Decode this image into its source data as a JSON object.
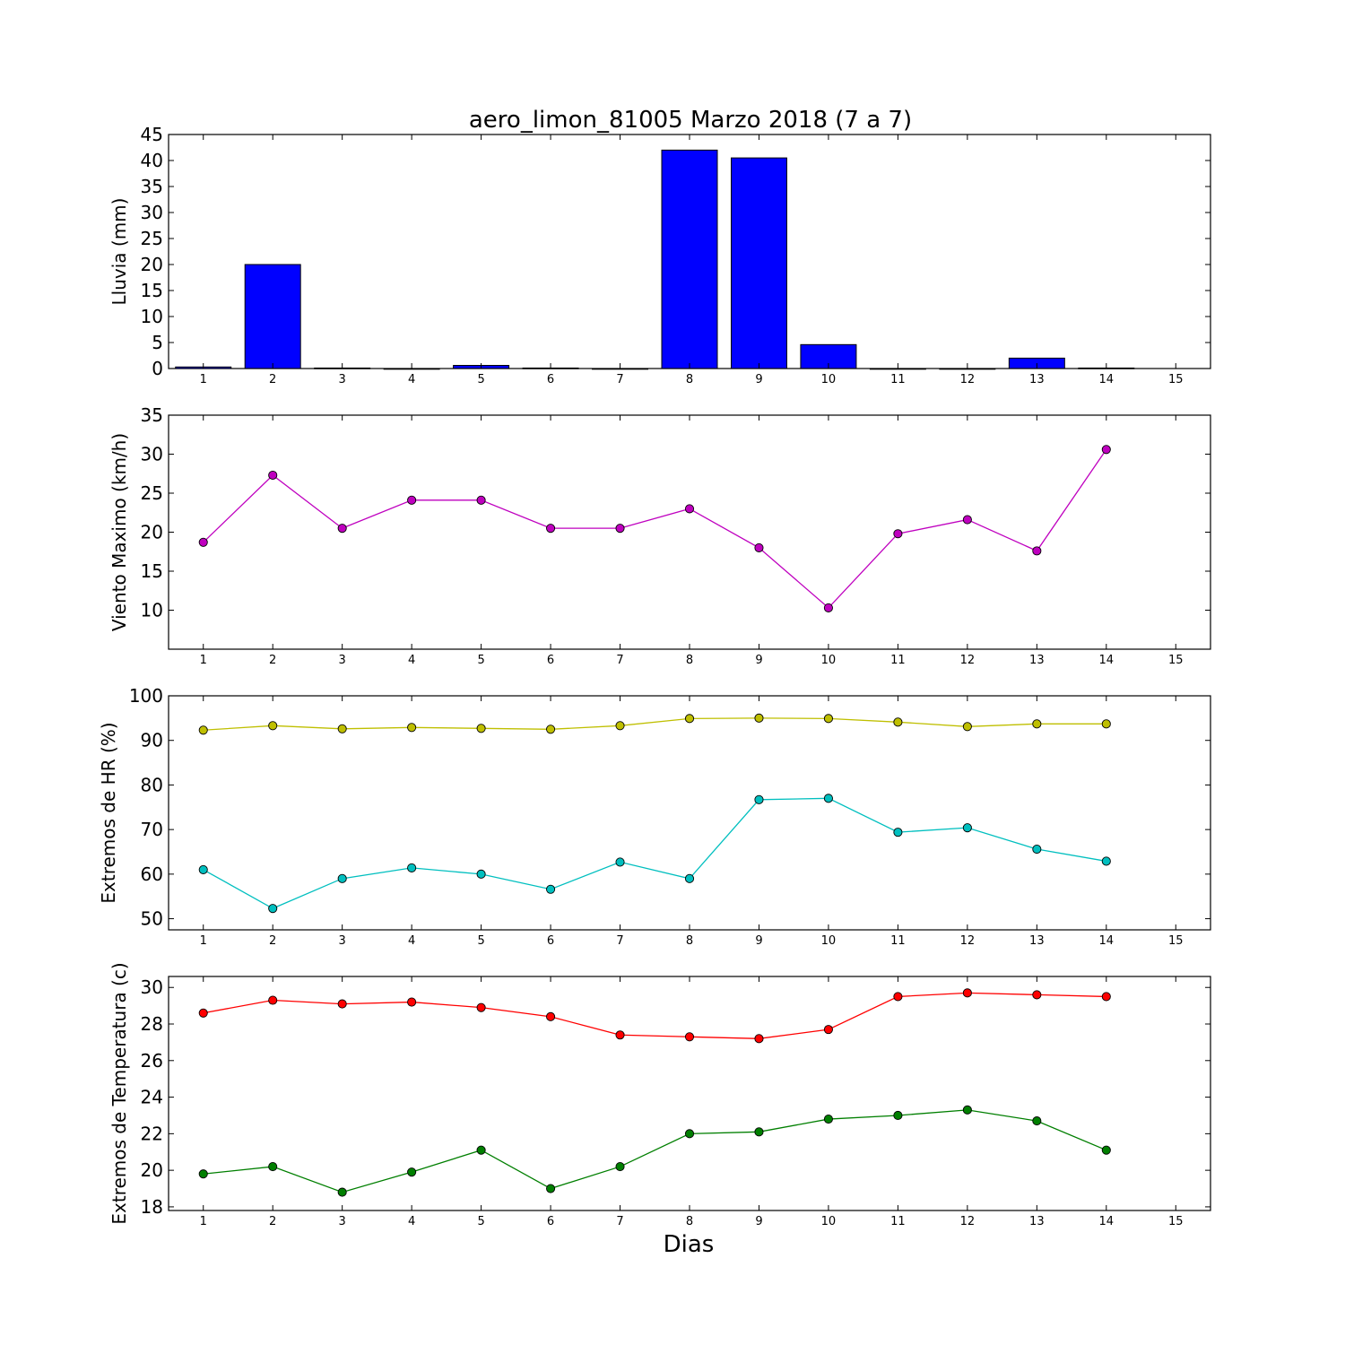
{
  "title": "aero_limon_81005 Marzo 2018  (7 a 7)",
  "xlabel": "Dias",
  "chart_data": [
    {
      "type": "bar",
      "ylabel": "Lluvia (mm)",
      "xlim": [
        0.5,
        15.5
      ],
      "ylim": [
        0,
        45
      ],
      "xticks": [
        1,
        2,
        3,
        4,
        5,
        6,
        7,
        8,
        9,
        10,
        11,
        12,
        13,
        14,
        15
      ],
      "yticks": [
        0,
        5,
        10,
        15,
        20,
        25,
        30,
        35,
        40,
        45
      ],
      "series": [
        {
          "color": "#0000ff",
          "x": [
            1,
            2,
            3,
            4,
            5,
            6,
            7,
            8,
            9,
            10,
            11,
            12,
            13,
            14
          ],
          "values": [
            0.3,
            20.0,
            0.1,
            0.0,
            0.6,
            0.1,
            0.0,
            42.0,
            40.5,
            4.6,
            0.0,
            0.0,
            2.0,
            0.1
          ]
        }
      ]
    },
    {
      "type": "line",
      "ylabel": "Viento Maximo (km/h)",
      "xlim": [
        0.5,
        15.5
      ],
      "ylim": [
        5,
        35
      ],
      "xticks": [
        1,
        2,
        3,
        4,
        5,
        6,
        7,
        8,
        9,
        10,
        11,
        12,
        13,
        14,
        15
      ],
      "yticks": [
        10,
        15,
        20,
        25,
        30,
        35
      ],
      "series": [
        {
          "color": "#bf00bf",
          "x": [
            1,
            2,
            3,
            4,
            5,
            6,
            7,
            8,
            9,
            10,
            11,
            12,
            13,
            14
          ],
          "values": [
            18.7,
            27.3,
            20.5,
            24.1,
            24.1,
            20.5,
            20.5,
            23.0,
            18.0,
            10.3,
            19.8,
            21.6,
            17.6,
            30.6
          ]
        }
      ]
    },
    {
      "type": "line",
      "ylabel": "Extremos de HR (%)",
      "xlim": [
        0.5,
        15.5
      ],
      "ylim": [
        47.5,
        100
      ],
      "xticks": [
        1,
        2,
        3,
        4,
        5,
        6,
        7,
        8,
        9,
        10,
        11,
        12,
        13,
        14,
        15
      ],
      "yticks": [
        50,
        60,
        70,
        80,
        90,
        100
      ],
      "series": [
        {
          "color": "#bfbf00",
          "x": [
            1,
            2,
            3,
            4,
            5,
            6,
            7,
            8,
            9,
            10,
            11,
            12,
            13,
            14
          ],
          "values": [
            92.3,
            93.3,
            92.6,
            92.9,
            92.7,
            92.5,
            93.3,
            94.9,
            95.0,
            94.9,
            94.1,
            93.1,
            93.7,
            93.7
          ]
        },
        {
          "color": "#00bfbf",
          "x": [
            1,
            2,
            3,
            4,
            5,
            6,
            7,
            8,
            9,
            10,
            11,
            12,
            13,
            14
          ],
          "values": [
            61.0,
            52.3,
            59.0,
            61.4,
            60.0,
            56.6,
            62.7,
            59.0,
            76.7,
            77.0,
            69.4,
            70.4,
            65.6,
            62.9
          ]
        }
      ]
    },
    {
      "type": "line",
      "ylabel": "Extremos de Temperatura (c)",
      "xlim": [
        0.5,
        15.5
      ],
      "ylim": [
        17.8,
        30.6
      ],
      "xticks": [
        1,
        2,
        3,
        4,
        5,
        6,
        7,
        8,
        9,
        10,
        11,
        12,
        13,
        14,
        15
      ],
      "yticks": [
        18,
        20,
        22,
        24,
        26,
        28,
        30
      ],
      "series": [
        {
          "color": "#ff0000",
          "x": [
            1,
            2,
            3,
            4,
            5,
            6,
            7,
            8,
            9,
            10,
            11,
            12,
            13,
            14
          ],
          "values": [
            28.6,
            29.3,
            29.1,
            29.2,
            28.9,
            28.4,
            27.4,
            27.3,
            27.2,
            27.7,
            29.5,
            29.7,
            29.6,
            29.5
          ]
        },
        {
          "color": "#007f00",
          "x": [
            1,
            2,
            3,
            4,
            5,
            6,
            7,
            8,
            9,
            10,
            11,
            12,
            13,
            14
          ],
          "values": [
            19.8,
            20.2,
            18.8,
            19.9,
            21.1,
            19.0,
            20.2,
            22.0,
            22.1,
            22.8,
            23.0,
            23.3,
            22.7,
            21.1
          ]
        }
      ]
    }
  ]
}
